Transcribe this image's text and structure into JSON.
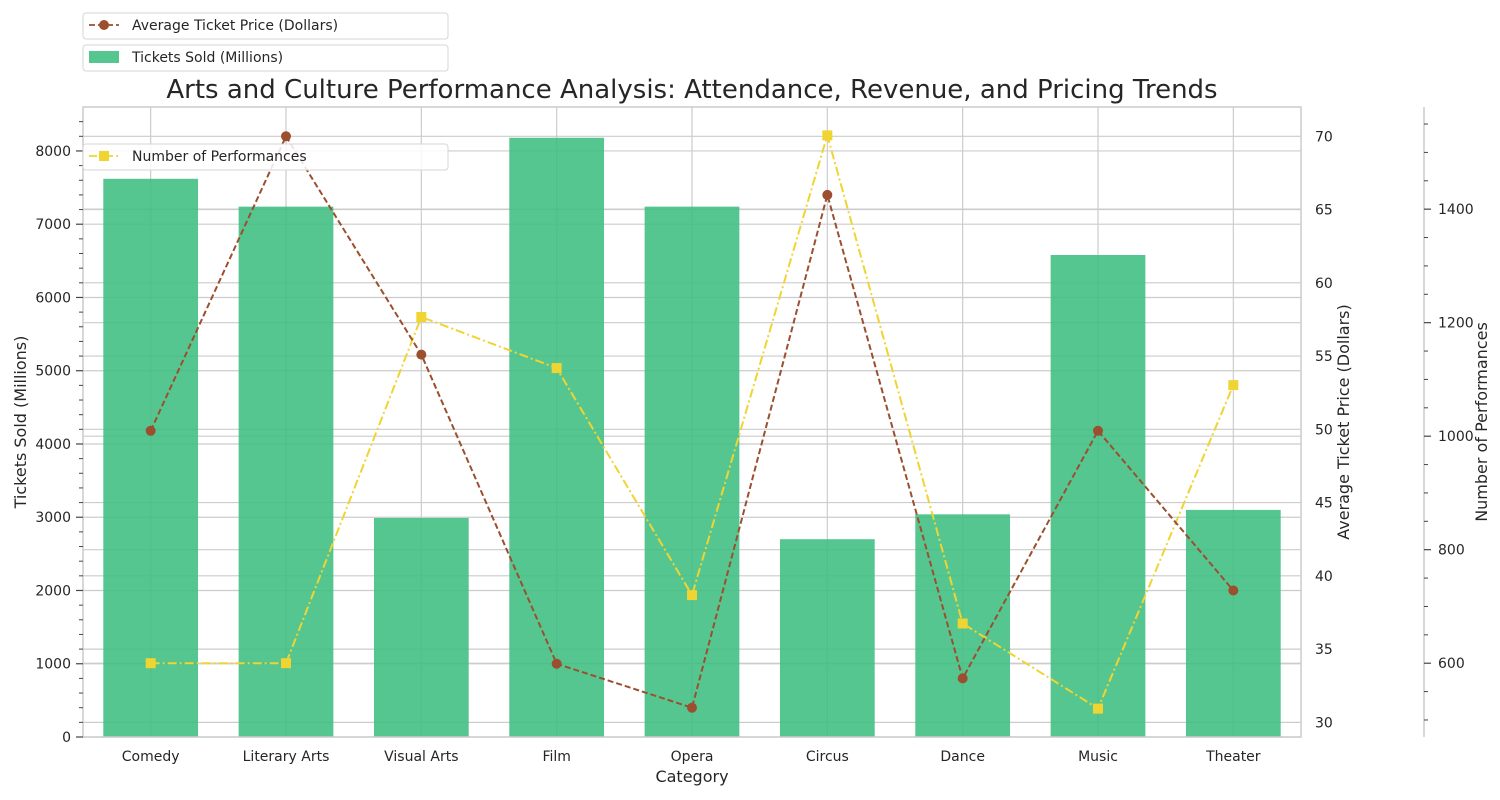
{
  "chart_data": {
    "type": "bar",
    "title": "Arts and Culture Performance Analysis: Attendance, Revenue, and Pricing Trends",
    "xlabel": "Category",
    "categories": [
      "Comedy",
      "Literary Arts",
      "Visual Arts",
      "Film",
      "Opera",
      "Circus",
      "Dance",
      "Music",
      "Theater"
    ],
    "grid": true,
    "series": [
      {
        "name": "Tickets Sold (Millions)",
        "type": "bar",
        "axis": "left",
        "ylabel": "Tickets Sold (Millions)",
        "ylim": [
          0,
          8600
        ],
        "yticks": [
          0,
          1000,
          2000,
          3000,
          4000,
          5000,
          6000,
          7000,
          8000
        ],
        "color": "#3cbe7f",
        "values": [
          7620,
          7240,
          2990,
          8180,
          7240,
          2700,
          3040,
          6580,
          3100
        ]
      },
      {
        "name": "Average Ticket Price (Dollars)",
        "type": "line",
        "axis": "right",
        "ylabel": "Average Ticket Price (Dollars)",
        "ylim": [
          29,
          72
        ],
        "yticks": [
          30,
          35,
          40,
          45,
          50,
          55,
          60,
          65,
          70
        ],
        "color": "#9b4f2f",
        "linestyle": "dashed",
        "marker": "circle",
        "values": [
          49.9,
          70,
          55.1,
          34,
          31,
          66,
          33,
          49.9,
          39
        ]
      },
      {
        "name": "Number of Performances",
        "type": "line",
        "axis": "right-outer",
        "ylabel": "Number of Performances",
        "ylim": [
          470,
          1580
        ],
        "yticks": [
          600,
          800,
          1000,
          1200,
          1400
        ],
        "color": "#f0d431",
        "linestyle": "dashdot",
        "marker": "square",
        "values": [
          600,
          600,
          1210,
          1120,
          720,
          1530,
          670,
          520,
          1090
        ]
      }
    ],
    "legend": {
      "placement": "top-left",
      "entries": [
        "Average Ticket Price (Dollars)",
        "Tickets Sold (Millions)",
        "Number of Performances"
      ]
    }
  }
}
